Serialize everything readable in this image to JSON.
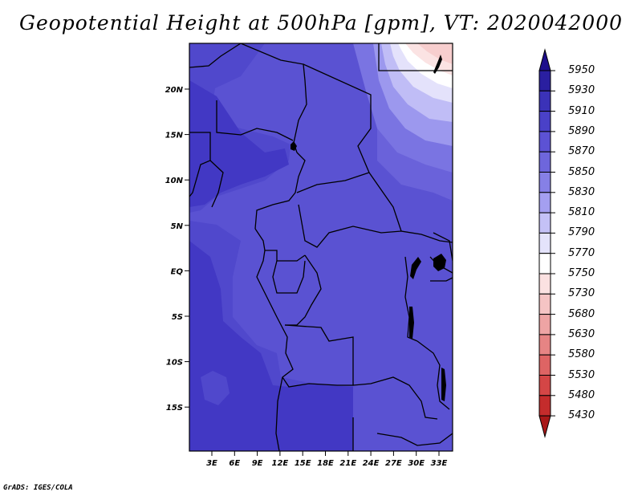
{
  "title": "Geopotential Height at 500hPa [gpm], VT: 2020042000",
  "credit": "GrADS: IGES/COLA",
  "lat_labels": [
    "20N",
    "15N",
    "10N",
    "5N",
    "EQ",
    "5S",
    "10S",
    "15S"
  ],
  "lon_labels": [
    "3E",
    "6E",
    "9E",
    "12E",
    "15E",
    "18E",
    "21E",
    "24E",
    "27E",
    "30E",
    "33E"
  ],
  "colorbar": {
    "levels": [
      "5950",
      "5930",
      "5910",
      "5890",
      "5870",
      "5850",
      "5830",
      "5810",
      "5790",
      "5770",
      "5750",
      "5730",
      "5680",
      "5630",
      "5580",
      "5530",
      "5480",
      "5430"
    ],
    "colors": [
      "#1e0e8c",
      "#2a1fa0",
      "#3b32b8",
      "#4a41c8",
      "#5c52d4",
      "#6e66dc",
      "#8680e6",
      "#a49ff0",
      "#c4c1f6",
      "#e4e3fb",
      "#ffffff",
      "#fbe1e1",
      "#f5c4c4",
      "#eea4a4",
      "#e68484",
      "#de6464",
      "#d44646",
      "#c42c2c",
      "#a81818"
    ]
  },
  "map_colors": {
    "z5910": "#4238c4",
    "z5890": "#5048cc",
    "z5870": "#5a52d2",
    "z5850": "#6a62da",
    "z5830": "#7a74e2",
    "z5810": "#9c98ee",
    "z5790": "#c0bdf6",
    "z5770": "#e4e2fb",
    "z5750": "#ffffff",
    "z5730": "#fbe3e3",
    "z5680": "#f7cece"
  }
}
